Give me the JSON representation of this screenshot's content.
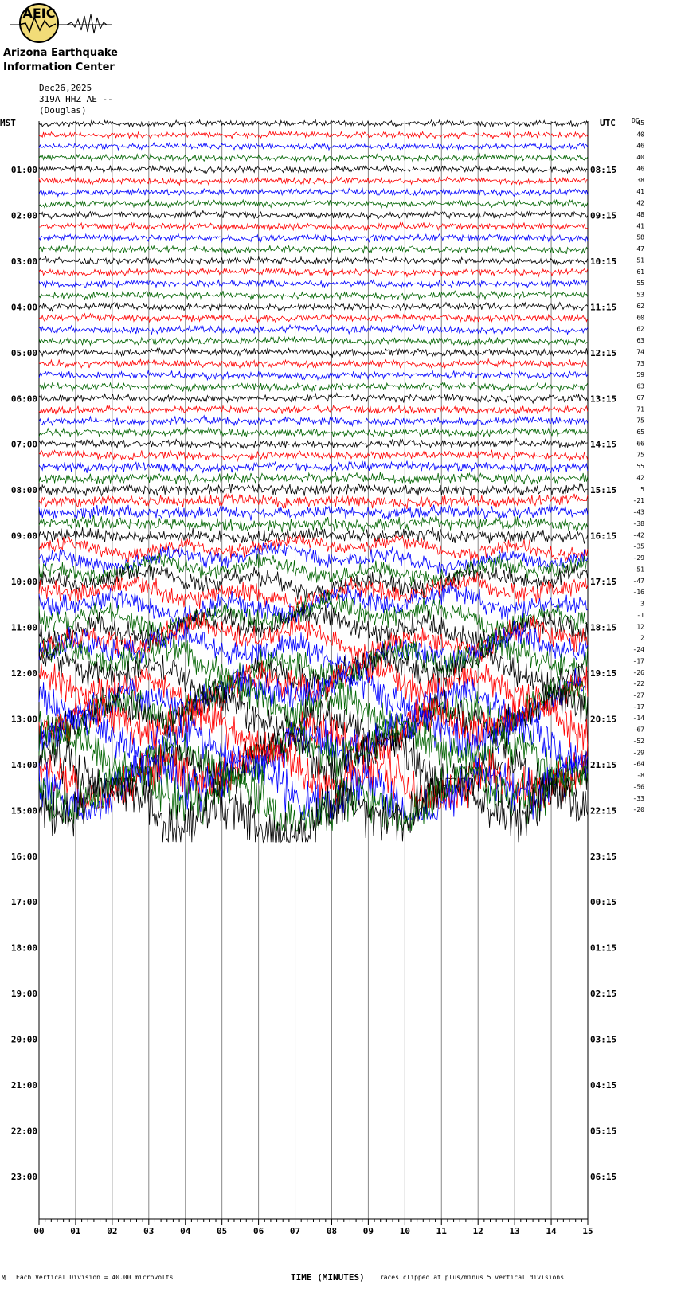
{
  "logo": {
    "badge": "AEIC",
    "org_line1": "Arizona Earthquake",
    "org_line2": "Information Center"
  },
  "header": {
    "date": "Dec26,2025",
    "channel": "319A HHZ AE --",
    "site": "(Douglas)"
  },
  "colors": {
    "trace_cycle": [
      "#000000",
      "#ff0000",
      "#0000ff",
      "#006400"
    ],
    "grid": "#888888",
    "logo_fill": "#f2dc78"
  },
  "chart_data": {
    "type": "line",
    "title": "",
    "xlabel": "TIME (MINUTES)",
    "left_axis_label": "MST",
    "right_axis_label": "UTC",
    "dc_label": "DC",
    "x_ticks": [
      "00",
      "01",
      "02",
      "03",
      "04",
      "05",
      "06",
      "07",
      "08",
      "09",
      "10",
      "11",
      "12",
      "13",
      "14",
      "15"
    ],
    "xlim": [
      0,
      15
    ],
    "mst_hours": [
      "01:00",
      "02:00",
      "03:00",
      "04:00",
      "05:00",
      "06:00",
      "07:00",
      "08:00",
      "09:00",
      "10:00",
      "11:00",
      "12:00",
      "13:00",
      "14:00",
      "15:00",
      "16:00",
      "17:00",
      "18:00",
      "19:00",
      "20:00",
      "21:00",
      "22:00",
      "23:00"
    ],
    "utc_hours": [
      "08:15",
      "09:15",
      "10:15",
      "11:15",
      "12:15",
      "13:15",
      "14:15",
      "15:15",
      "16:15",
      "17:15",
      "18:15",
      "19:15",
      "20:15",
      "21:15",
      "22:15",
      "23:15",
      "00:15",
      "01:15",
      "02:15",
      "03:15",
      "04:15",
      "05:15",
      "06:15"
    ],
    "dc_offsets": [
      45,
      40,
      46,
      40,
      46,
      38,
      41,
      42,
      48,
      41,
      58,
      47,
      51,
      61,
      55,
      53,
      62,
      60,
      62,
      63,
      74,
      73,
      59,
      63,
      67,
      71,
      75,
      65,
      66,
      75,
      55,
      42,
      5,
      -21,
      -43,
      -38,
      -42,
      -35,
      -29,
      -51,
      -47,
      -16,
      3,
      -1,
      12,
      2,
      -24,
      -17,
      -26,
      -22,
      -27,
      -17,
      -14,
      -67,
      -52,
      -29,
      -64,
      -8,
      -56,
      -33,
      -20
    ],
    "traces_recorded": 61,
    "rows_per_hour": 4,
    "footer_left": "Each Vertical Division =   40.00 microvolts",
    "footer_right": "Traces clipped at plus/minus 5 vertical divisions",
    "footer_mark": "M"
  }
}
